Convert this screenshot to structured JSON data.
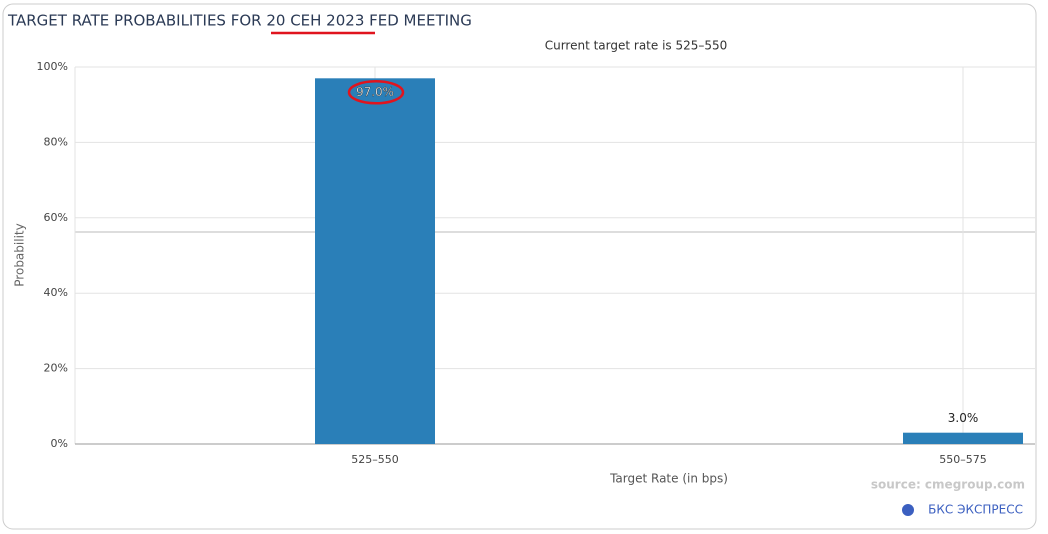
{
  "chart_data": {
    "type": "bar",
    "title": "TARGET RATE PROBABILITIES FOR 20 СЕН 2023 FED MEETING",
    "subtitle": "Current target rate is 525–550",
    "y_label": "Probability",
    "x_label": "Target Rate (in bps)",
    "categories": [
      "525–550",
      "550–575"
    ],
    "values": [
      97.0,
      3.0
    ],
    "value_labels": [
      "97.0%",
      "3.0%"
    ],
    "color": "#2a7fb8",
    "ylim": [
      0,
      100
    ],
    "yticks": [
      {
        "value": 0,
        "label": "0%"
      },
      {
        "value": 20,
        "label": "20%"
      },
      {
        "value": 40,
        "label": "40%"
      },
      {
        "value": 60,
        "label": "60%"
      },
      {
        "value": 80,
        "label": "80%"
      },
      {
        "value": 100,
        "label": "100%"
      }
    ],
    "grid": true,
    "source": "source: cmegroup.com",
    "watermark": "БКС ЭКСПРЕСС"
  }
}
